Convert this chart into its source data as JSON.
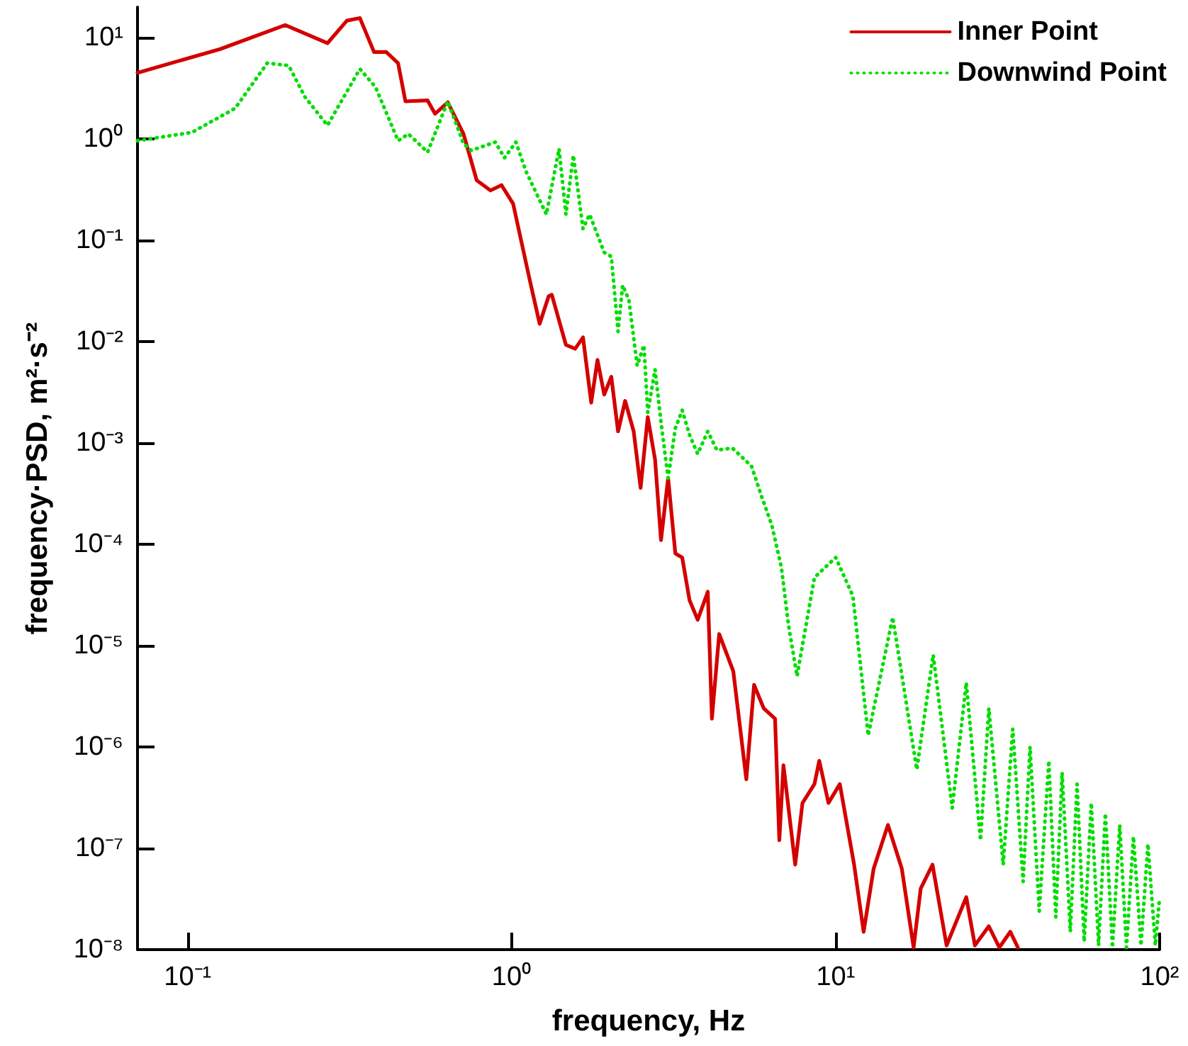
{
  "chart_data": {
    "type": "line",
    "xlabel": "frequency, Hz",
    "ylabel": "frequency·PSD, m²·s⁻²",
    "log": "xy",
    "grid": false,
    "legend": "top right",
    "marker": "none",
    "xlim": [
      0.07,
      100
    ],
    "ylim": [
      1e-08,
      20
    ],
    "xticks": [
      {
        "value": 0.1,
        "label": "10⁻¹"
      },
      {
        "value": 1,
        "label": "10⁰"
      },
      {
        "value": 10,
        "label": "10¹"
      },
      {
        "value": 100,
        "label": "10²"
      }
    ],
    "yticks": [
      {
        "value": 1e-08,
        "label": "10⁻⁸"
      },
      {
        "value": 1e-07,
        "label": "10⁻⁷"
      },
      {
        "value": 1e-06,
        "label": "10⁻⁶"
      },
      {
        "value": 1e-05,
        "label": "10⁻⁵"
      },
      {
        "value": 0.0001,
        "label": "10⁻⁴"
      },
      {
        "value": 0.001,
        "label": "10⁻³"
      },
      {
        "value": 0.01,
        "label": "10⁻²"
      },
      {
        "value": 0.1,
        "label": "10⁻¹"
      },
      {
        "value": 1,
        "label": "10⁰"
      },
      {
        "value": 10,
        "label": "10¹"
      }
    ],
    "series": [
      {
        "name": "Inner Point",
        "color": "#d40000",
        "line_style": "solid",
        "x": [
          0.07,
          0.126,
          0.2,
          0.27,
          0.31,
          0.34,
          0.376,
          0.41,
          0.446,
          0.47,
          0.55,
          0.58,
          0.635,
          0.71,
          0.78,
          0.86,
          0.93,
          1.01,
          1.14,
          1.22,
          1.3,
          1.33,
          1.47,
          1.57,
          1.66,
          1.76,
          1.84,
          1.93,
          2.03,
          2.13,
          2.24,
          2.38,
          2.5,
          2.63,
          2.77,
          2.89,
          3.04,
          3.2,
          3.36,
          3.54,
          3.75,
          4.03,
          4.15,
          4.37,
          4.83,
          5.3,
          5.6,
          6.0,
          6.5,
          6.7,
          6.9,
          7.5,
          7.9,
          8.6,
          8.9,
          9.5,
          10.3,
          11.4,
          12.2,
          13.1,
          14.5,
          16.0,
          17.4,
          18.3,
          19.9,
          22,
          25.3,
          26.9,
          29.7,
          32,
          34.6,
          36.5
        ],
        "values": [
          4.5,
          7.7,
          13.3,
          8.8,
          14.7,
          15.6,
          7.2,
          7.2,
          5.6,
          2.35,
          2.4,
          1.77,
          2.3,
          1.12,
          0.39,
          0.31,
          0.35,
          0.23,
          0.039,
          0.015,
          0.028,
          0.029,
          0.0093,
          0.0085,
          0.011,
          0.0025,
          0.0066,
          0.003,
          0.0045,
          0.0013,
          0.0026,
          0.0013,
          0.00036,
          0.0018,
          0.00069,
          0.00011,
          0.00045,
          8.1e-05,
          7.4e-05,
          2.8e-05,
          1.8e-05,
          3.4e-05,
          1.9e-06,
          1.3e-05,
          5.6e-06,
          4.8e-07,
          4.1e-06,
          2.4e-06,
          1.9e-06,
          1.2e-07,
          6.6e-07,
          6.9e-08,
          2.8e-07,
          4.3e-07,
          7.3e-07,
          2.8e-07,
          4.3e-07,
          6.9e-08,
          1.5e-08,
          6.3e-08,
          1.7e-07,
          6.3e-08,
          1.05e-08,
          4e-08,
          6.9e-08,
          1.1e-08,
          3.3e-08,
          1.1e-08,
          1.7e-08,
          1.05e-08,
          1.5e-08,
          1.05e-08
        ]
      },
      {
        "name": "Downwind Point",
        "color": "#00dd00",
        "line_style": "dotted",
        "x": [
          0.07,
          0.103,
          0.14,
          0.176,
          0.205,
          0.23,
          0.27,
          0.34,
          0.38,
          0.446,
          0.48,
          0.55,
          0.635,
          0.71,
          0.75,
          0.89,
          0.95,
          1.03,
          1.11,
          1.28,
          1.4,
          1.47,
          1.55,
          1.66,
          1.74,
          1.93,
          2.03,
          2.13,
          2.2,
          2.3,
          2.44,
          2.56,
          2.63,
          2.77,
          2.89,
          3.04,
          3.2,
          3.36,
          3.54,
          3.75,
          4.03,
          4.3,
          4.8,
          5.5,
          5.9,
          6.35,
          6.8,
          7.15,
          7.6,
          8.6,
          10,
          11.3,
          12.6,
          15,
          17.8,
          20,
          22.9,
          25.3,
          28,
          29.7,
          32.9,
          35.2,
          37.9,
          39.8,
          42.5,
          45.5,
          47.8,
          50,
          53,
          55.6,
          58.5,
          61.5,
          64.8,
          68,
          71.5,
          75.3,
          79,
          83,
          87.6,
          92,
          97,
          100
        ],
        "values": [
          0.96,
          1.16,
          2.0,
          5.6,
          5.3,
          2.6,
          1.36,
          4.9,
          3.25,
          0.96,
          1.12,
          0.74,
          2.35,
          0.9,
          0.77,
          0.93,
          0.65,
          0.93,
          0.47,
          0.18,
          0.8,
          0.18,
          0.69,
          0.13,
          0.18,
          0.076,
          0.069,
          0.0126,
          0.036,
          0.026,
          0.0058,
          0.0092,
          0.002,
          0.0053,
          0.0016,
          0.00045,
          0.0014,
          0.0021,
          0.0012,
          0.00078,
          0.0013,
          0.00085,
          0.00089,
          0.00059,
          0.0003,
          0.000155,
          5.9e-05,
          1.6e-05,
          5e-06,
          4.7e-05,
          7.4e-05,
          3.1e-05,
          1.3e-06,
          1.9e-05,
          6e-07,
          8.1e-06,
          2.5e-07,
          4.3e-06,
          1.2e-07,
          2.4e-06,
          6.9e-08,
          1.5e-06,
          4.7e-08,
          1e-06,
          2.4e-08,
          7.3e-07,
          2.1e-08,
          5.6e-07,
          1.5e-08,
          4.3e-07,
          1.2e-08,
          2.8e-07,
          1.1e-08,
          2.2e-07,
          1.05e-08,
          1.7e-07,
          1.05e-08,
          1.3e-07,
          1.1e-08,
          1.1e-07,
          1.1e-08,
          3.3e-08
        ]
      }
    ]
  }
}
